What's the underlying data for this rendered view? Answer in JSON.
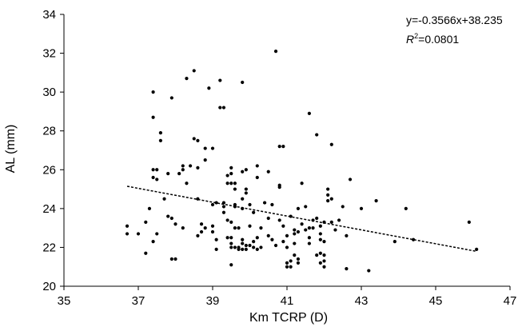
{
  "chart_data": {
    "type": "scatter",
    "xlabel": "Km TCRP (D)",
    "ylabel": "AL (mm)",
    "xlim": [
      35,
      47
    ],
    "ylim": [
      20,
      34
    ],
    "xticks": [
      "35",
      "37",
      "39",
      "41",
      "43",
      "45",
      "47"
    ],
    "yticks": [
      "20",
      "22",
      "24",
      "26",
      "28",
      "30",
      "32",
      "34"
    ],
    "grid": false,
    "legend": "none",
    "trendline": {
      "slope": -0.3566,
      "intercept": 38.235,
      "x_range": [
        36.7,
        46.1
      ],
      "style": "dashed"
    },
    "annotations": {
      "equation": "y=-0.3566x+38.235",
      "r2_prefix": "R",
      "r2_sup": "2",
      "r2_value": "=0.0801"
    },
    "colors": {
      "points": "#000000",
      "axis": "#000000"
    },
    "points": [
      [
        36.7,
        22.7
      ],
      [
        36.7,
        23.1
      ],
      [
        37.0,
        22.7
      ],
      [
        37.2,
        21.7
      ],
      [
        37.2,
        23.3
      ],
      [
        37.3,
        24.0
      ],
      [
        37.4,
        22.3
      ],
      [
        37.4,
        25.6
      ],
      [
        37.4,
        26.0
      ],
      [
        37.5,
        25.5
      ],
      [
        37.4,
        30.0
      ],
      [
        37.4,
        28.7
      ],
      [
        37.5,
        26.0
      ],
      [
        37.5,
        22.7
      ],
      [
        37.6,
        27.9
      ],
      [
        37.6,
        27.5
      ],
      [
        37.7,
        24.5
      ],
      [
        37.8,
        25.8
      ],
      [
        37.8,
        23.6
      ],
      [
        37.9,
        23.5
      ],
      [
        37.9,
        29.7
      ],
      [
        37.9,
        21.4
      ],
      [
        38.0,
        21.4
      ],
      [
        38.0,
        23.2
      ],
      [
        38.1,
        25.8
      ],
      [
        38.2,
        26.0
      ],
      [
        38.2,
        23.0
      ],
      [
        38.2,
        26.2
      ],
      [
        38.3,
        30.7
      ],
      [
        38.3,
        25.3
      ],
      [
        38.4,
        26.2
      ],
      [
        38.5,
        31.1
      ],
      [
        38.5,
        27.6
      ],
      [
        38.6,
        27.5
      ],
      [
        38.6,
        26.1
      ],
      [
        38.6,
        24.5
      ],
      [
        38.6,
        22.6
      ],
      [
        38.7,
        23.2
      ],
      [
        38.7,
        22.8
      ],
      [
        38.8,
        23.0
      ],
      [
        38.8,
        26.5
      ],
      [
        38.8,
        27.1
      ],
      [
        38.9,
        30.2
      ],
      [
        39.0,
        27.1
      ],
      [
        39.0,
        24.2
      ],
      [
        39.0,
        23.1
      ],
      [
        39.0,
        22.8
      ],
      [
        39.1,
        24.3
      ],
      [
        39.1,
        22.4
      ],
      [
        39.1,
        21.9
      ],
      [
        39.2,
        30.6
      ],
      [
        39.2,
        29.2
      ],
      [
        39.3,
        29.2
      ],
      [
        39.3,
        24.3
      ],
      [
        39.3,
        24.1
      ],
      [
        39.3,
        23.8
      ],
      [
        39.4,
        22.5
      ],
      [
        39.4,
        25.7
      ],
      [
        39.4,
        25.3
      ],
      [
        39.4,
        23.4
      ],
      [
        39.5,
        26.1
      ],
      [
        39.5,
        25.8
      ],
      [
        39.5,
        25.3
      ],
      [
        39.5,
        23.3
      ],
      [
        39.5,
        22.5
      ],
      [
        39.5,
        22.2
      ],
      [
        39.5,
        22.0
      ],
      [
        39.5,
        21.1
      ],
      [
        39.6,
        23.0
      ],
      [
        39.6,
        24.2
      ],
      [
        39.6,
        24.1
      ],
      [
        39.6,
        22.0
      ],
      [
        39.6,
        25.3
      ],
      [
        39.6,
        25.0
      ],
      [
        39.7,
        23.0
      ],
      [
        39.7,
        22.0
      ],
      [
        39.7,
        21.9
      ],
      [
        39.8,
        30.5
      ],
      [
        39.8,
        25.9
      ],
      [
        39.8,
        24.5
      ],
      [
        39.8,
        24.0
      ],
      [
        39.8,
        22.4
      ],
      [
        39.8,
        22.2
      ],
      [
        39.8,
        21.9
      ],
      [
        39.9,
        26.0
      ],
      [
        39.9,
        25.0
      ],
      [
        39.9,
        24.8
      ],
      [
        39.9,
        22.1
      ],
      [
        39.9,
        21.9
      ],
      [
        40.0,
        22.1
      ],
      [
        40.0,
        23.1
      ],
      [
        40.0,
        24.2
      ],
      [
        40.1,
        23.8
      ],
      [
        40.1,
        22.3
      ],
      [
        40.1,
        22.0
      ],
      [
        40.2,
        26.2
      ],
      [
        40.2,
        25.6
      ],
      [
        40.2,
        22.5
      ],
      [
        40.2,
        21.9
      ],
      [
        40.3,
        22.0
      ],
      [
        40.3,
        23.0
      ],
      [
        40.4,
        24.3
      ],
      [
        40.5,
        25.9
      ],
      [
        40.5,
        23.5
      ],
      [
        40.5,
        22.6
      ],
      [
        40.6,
        24.2
      ],
      [
        40.6,
        22.4
      ],
      [
        40.7,
        32.1
      ],
      [
        40.7,
        22.1
      ],
      [
        40.8,
        25.2
      ],
      [
        40.8,
        25.1
      ],
      [
        40.8,
        27.2
      ],
      [
        40.8,
        23.4
      ],
      [
        40.9,
        27.2
      ],
      [
        40.9,
        23.1
      ],
      [
        40.9,
        22.3
      ],
      [
        41.0,
        21.2
      ],
      [
        41.0,
        21.0
      ],
      [
        41.0,
        22.6
      ],
      [
        41.0,
        22.0
      ],
      [
        41.1,
        21.3
      ],
      [
        41.1,
        21.0
      ],
      [
        41.1,
        23.6
      ],
      [
        41.2,
        22.9
      ],
      [
        41.2,
        22.7
      ],
      [
        41.2,
        22.2
      ],
      [
        41.2,
        21.6
      ],
      [
        41.3,
        24.0
      ],
      [
        41.3,
        22.8
      ],
      [
        41.3,
        21.4
      ],
      [
        41.3,
        21.2
      ],
      [
        41.4,
        25.3
      ],
      [
        41.4,
        23.2
      ],
      [
        41.5,
        24.1
      ],
      [
        41.5,
        22.9
      ],
      [
        41.6,
        28.9
      ],
      [
        41.6,
        23.0
      ],
      [
        41.6,
        22.5
      ],
      [
        41.6,
        22.2
      ],
      [
        41.7,
        23.4
      ],
      [
        41.7,
        23.0
      ],
      [
        41.8,
        27.8
      ],
      [
        41.8,
        23.5
      ],
      [
        41.8,
        21.6
      ],
      [
        41.9,
        23.1
      ],
      [
        41.9,
        22.7
      ],
      [
        41.9,
        22.4
      ],
      [
        41.9,
        21.7
      ],
      [
        41.9,
        21.2
      ],
      [
        42.0,
        23.3
      ],
      [
        42.0,
        22.3
      ],
      [
        42.0,
        21.6
      ],
      [
        42.0,
        21.3
      ],
      [
        42.0,
        21.0
      ],
      [
        42.1,
        25.0
      ],
      [
        42.1,
        24.7
      ],
      [
        42.1,
        24.4
      ],
      [
        42.2,
        27.3
      ],
      [
        42.2,
        24.5
      ],
      [
        42.2,
        23.3
      ],
      [
        42.3,
        22.9
      ],
      [
        42.4,
        23.4
      ],
      [
        42.5,
        24.1
      ],
      [
        42.6,
        20.9
      ],
      [
        42.6,
        22.6
      ],
      [
        42.7,
        25.5
      ],
      [
        43.0,
        24.0
      ],
      [
        43.2,
        20.8
      ],
      [
        43.4,
        24.4
      ],
      [
        43.9,
        22.3
      ],
      [
        44.2,
        24.0
      ],
      [
        44.4,
        22.4
      ],
      [
        45.9,
        23.3
      ],
      [
        46.1,
        21.9
      ]
    ]
  }
}
